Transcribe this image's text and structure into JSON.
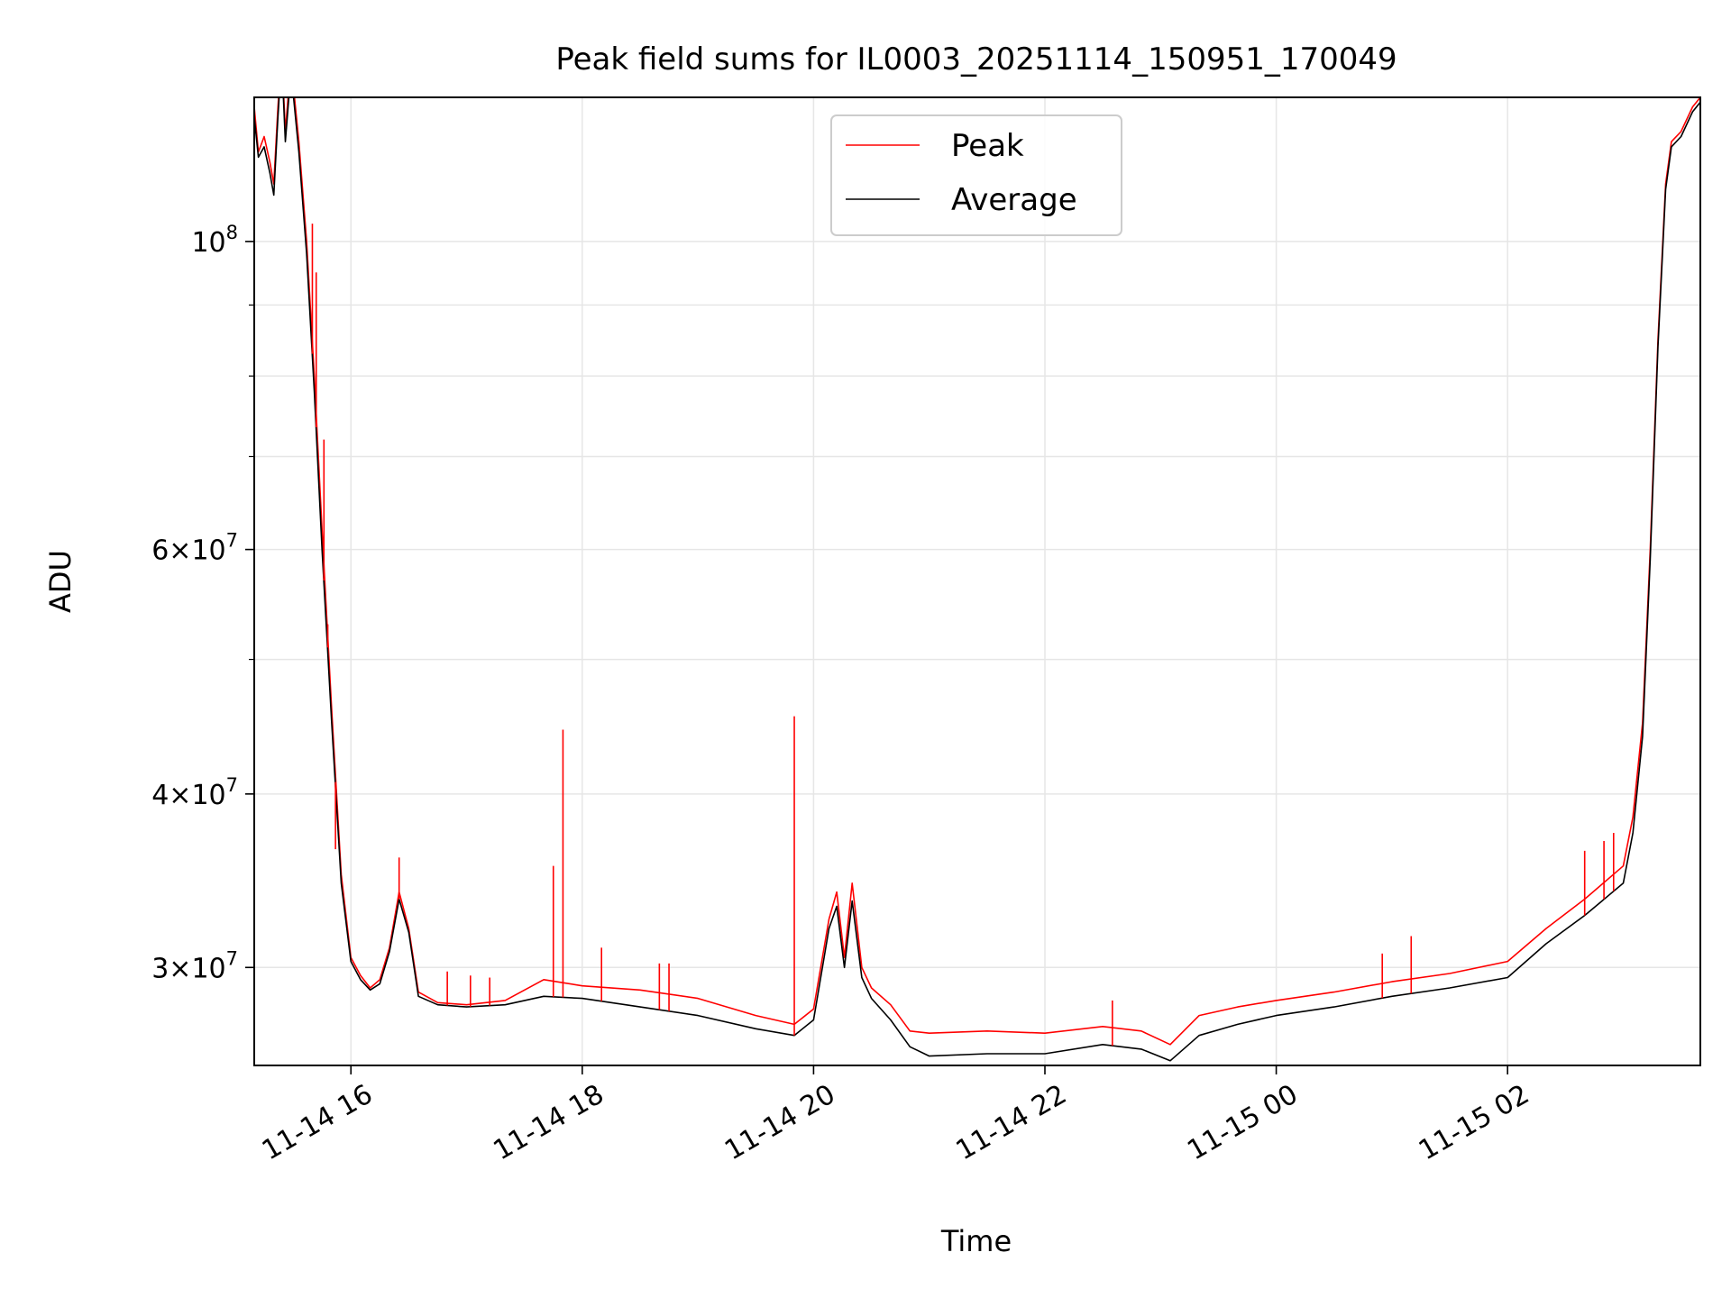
{
  "chart_data": {
    "type": "line",
    "title": "Peak field sums for IL0003_20251114_150951_170049",
    "xlabel": "Time",
    "ylabel": "ADU",
    "yscale": "log",
    "xlim": [
      "2025-11-14T15:09:51",
      "2025-11-15T03:40:00"
    ],
    "ylim": [
      25500000,
      127000000
    ],
    "grid": true,
    "legend_position": "top-center",
    "x_ticks": [
      {
        "x": "2025-11-14T16:00",
        "label": "11-14 16"
      },
      {
        "x": "2025-11-14T18:00",
        "label": "11-14 18"
      },
      {
        "x": "2025-11-14T20:00",
        "label": "11-14 20"
      },
      {
        "x": "2025-11-14T22:00",
        "label": "11-14 22"
      },
      {
        "x": "2025-11-15T00:00",
        "label": "11-15 00"
      },
      {
        "x": "2025-11-15T02:00",
        "label": "11-15 02"
      }
    ],
    "y_ticks_major": [
      {
        "y": 30000000,
        "label_mantissa": "3",
        "label_exp": "7"
      },
      {
        "y": 40000000,
        "label_mantissa": "4",
        "label_exp": "7"
      },
      {
        "y": 60000000,
        "label_mantissa": "6",
        "label_exp": "7"
      },
      {
        "y": 100000000,
        "label_mantissa": "",
        "label_exp": "8"
      }
    ],
    "y_ticks_minor": [
      50000000,
      70000000,
      80000000,
      90000000
    ],
    "series": [
      {
        "name": "Peak",
        "color": "#ff0000",
        "points": [
          [
            "2025-11-14T15:09:51",
            125000000
          ],
          [
            "2025-11-14T15:12",
            116000000
          ],
          [
            "2025-11-14T15:15",
            119000000
          ],
          [
            "2025-11-14T15:18",
            114000000
          ],
          [
            "2025-11-14T15:20",
            110000000
          ],
          [
            "2025-11-14T15:22",
            124000000
          ],
          [
            "2025-11-14T15:24",
            138000000
          ],
          [
            "2025-11-14T15:26",
            120000000
          ],
          [
            "2025-11-14T15:28",
            130000000
          ],
          [
            "2025-11-14T15:30",
            130000000
          ],
          [
            "2025-11-14T15:33",
            118000000
          ],
          [
            "2025-11-14T15:37",
            100000000
          ],
          [
            "2025-11-14T15:41",
            80000000
          ],
          [
            "2025-11-14T15:45",
            62000000
          ],
          [
            "2025-11-14T15:50",
            46000000
          ],
          [
            "2025-11-14T15:55",
            35000000
          ],
          [
            "2025-11-14T16:00",
            30500000
          ],
          [
            "2025-11-14T16:05",
            29600000
          ],
          [
            "2025-11-14T16:10",
            29000000
          ],
          [
            "2025-11-14T16:15",
            29400000
          ],
          [
            "2025-11-14T16:20",
            31000000
          ],
          [
            "2025-11-14T16:25",
            34000000
          ],
          [
            "2025-11-14T16:30",
            32000000
          ],
          [
            "2025-11-14T16:35",
            28800000
          ],
          [
            "2025-11-14T16:45",
            28300000
          ],
          [
            "2025-11-14T17:00",
            28200000
          ],
          [
            "2025-11-14T17:20",
            28400000
          ],
          [
            "2025-11-14T17:40",
            29400000
          ],
          [
            "2025-11-14T18:00",
            29100000
          ],
          [
            "2025-11-14T18:30",
            28900000
          ],
          [
            "2025-11-14T19:00",
            28500000
          ],
          [
            "2025-11-14T19:30",
            27700000
          ],
          [
            "2025-11-14T19:50",
            27300000
          ],
          [
            "2025-11-14T20:00",
            28000000
          ],
          [
            "2025-11-14T20:08",
            32500000
          ],
          [
            "2025-11-14T20:12",
            34000000
          ],
          [
            "2025-11-14T20:16",
            30500000
          ],
          [
            "2025-11-14T20:20",
            34500000
          ],
          [
            "2025-11-14T20:25",
            30000000
          ],
          [
            "2025-11-14T20:30",
            29000000
          ],
          [
            "2025-11-14T20:40",
            28200000
          ],
          [
            "2025-11-14T20:50",
            27000000
          ],
          [
            "2025-11-14T21:00",
            26900000
          ],
          [
            "2025-11-14T21:30",
            27000000
          ],
          [
            "2025-11-14T22:00",
            26900000
          ],
          [
            "2025-11-14T22:30",
            27200000
          ],
          [
            "2025-11-14T22:50",
            27000000
          ],
          [
            "2025-11-14T23:05",
            26400000
          ],
          [
            "2025-11-14T23:20",
            27700000
          ],
          [
            "2025-11-14T23:40",
            28100000
          ],
          [
            "2025-11-15T00:00",
            28400000
          ],
          [
            "2025-11-15T00:30",
            28800000
          ],
          [
            "2025-11-15T01:00",
            29300000
          ],
          [
            "2025-11-15T01:30",
            29700000
          ],
          [
            "2025-11-15T02:00",
            30300000
          ],
          [
            "2025-11-15T02:20",
            32000000
          ],
          [
            "2025-11-15T02:40",
            33600000
          ],
          [
            "2025-11-15T03:00",
            35500000
          ],
          [
            "2025-11-15T03:05",
            38500000
          ],
          [
            "2025-11-15T03:10",
            45000000
          ],
          [
            "2025-11-15T03:14",
            60000000
          ],
          [
            "2025-11-15T03:18",
            85000000
          ],
          [
            "2025-11-15T03:22",
            110000000
          ],
          [
            "2025-11-15T03:25",
            118000000
          ],
          [
            "2025-11-15T03:30",
            120000000
          ],
          [
            "2025-11-15T03:36",
            125000000
          ],
          [
            "2025-11-15T03:40",
            127000000
          ]
        ],
        "spikes": [
          [
            "2025-11-14T15:40",
            103000000
          ],
          [
            "2025-11-14T15:42",
            95000000
          ],
          [
            "2025-11-14T15:46",
            72000000
          ],
          [
            "2025-11-14T15:48",
            53000000
          ],
          [
            "2025-11-14T15:52",
            36500000
          ],
          [
            "2025-11-14T16:25",
            36000000
          ],
          [
            "2025-11-14T16:50",
            29800000
          ],
          [
            "2025-11-14T17:02",
            29600000
          ],
          [
            "2025-11-14T17:12",
            29500000
          ],
          [
            "2025-11-14T17:45",
            35500000
          ],
          [
            "2025-11-14T17:50",
            44500000
          ],
          [
            "2025-11-14T18:10",
            31000000
          ],
          [
            "2025-11-14T18:40",
            30200000
          ],
          [
            "2025-11-14T18:45",
            30200000
          ],
          [
            "2025-11-14T19:50",
            45500000
          ],
          [
            "2025-11-14T22:35",
            28400000
          ],
          [
            "2025-11-15T00:55",
            30700000
          ],
          [
            "2025-11-15T01:10",
            31600000
          ],
          [
            "2025-11-15T02:40",
            36400000
          ],
          [
            "2025-11-15T02:50",
            37000000
          ],
          [
            "2025-11-15T02:55",
            37500000
          ]
        ]
      },
      {
        "name": "Average",
        "color": "#000000",
        "points": [
          [
            "2025-11-14T15:09:51",
            123000000
          ],
          [
            "2025-11-14T15:12",
            115000000
          ],
          [
            "2025-11-14T15:15",
            117000000
          ],
          [
            "2025-11-14T15:18",
            112000000
          ],
          [
            "2025-11-14T15:20",
            108000000
          ],
          [
            "2025-11-14T15:22",
            122000000
          ],
          [
            "2025-11-14T15:24",
            136000000
          ],
          [
            "2025-11-14T15:26",
            118000000
          ],
          [
            "2025-11-14T15:28",
            128000000
          ],
          [
            "2025-11-14T15:30",
            128000000
          ],
          [
            "2025-11-14T15:33",
            116000000
          ],
          [
            "2025-11-14T15:37",
            98000000
          ],
          [
            "2025-11-14T15:41",
            78000000
          ],
          [
            "2025-11-14T15:45",
            60000000
          ],
          [
            "2025-11-14T15:50",
            45000000
          ],
          [
            "2025-11-14T15:55",
            34500000
          ],
          [
            "2025-11-14T16:00",
            30300000
          ],
          [
            "2025-11-14T16:05",
            29400000
          ],
          [
            "2025-11-14T16:10",
            28900000
          ],
          [
            "2025-11-14T16:15",
            29200000
          ],
          [
            "2025-11-14T16:20",
            30800000
          ],
          [
            "2025-11-14T16:25",
            33600000
          ],
          [
            "2025-11-14T16:30",
            31800000
          ],
          [
            "2025-11-14T16:35",
            28600000
          ],
          [
            "2025-11-14T16:45",
            28200000
          ],
          [
            "2025-11-14T17:00",
            28100000
          ],
          [
            "2025-11-14T17:20",
            28200000
          ],
          [
            "2025-11-14T17:40",
            28600000
          ],
          [
            "2025-11-14T18:00",
            28500000
          ],
          [
            "2025-11-14T18:30",
            28100000
          ],
          [
            "2025-11-14T19:00",
            27700000
          ],
          [
            "2025-11-14T19:30",
            27100000
          ],
          [
            "2025-11-14T19:50",
            26800000
          ],
          [
            "2025-11-14T20:00",
            27500000
          ],
          [
            "2025-11-14T20:08",
            32000000
          ],
          [
            "2025-11-14T20:12",
            33200000
          ],
          [
            "2025-11-14T20:16",
            30000000
          ],
          [
            "2025-11-14T20:20",
            33500000
          ],
          [
            "2025-11-14T20:25",
            29500000
          ],
          [
            "2025-11-14T20:30",
            28500000
          ],
          [
            "2025-11-14T20:40",
            27500000
          ],
          [
            "2025-11-14T20:50",
            26300000
          ],
          [
            "2025-11-14T21:00",
            25900000
          ],
          [
            "2025-11-14T21:30",
            26000000
          ],
          [
            "2025-11-14T22:00",
            26000000
          ],
          [
            "2025-11-14T22:30",
            26400000
          ],
          [
            "2025-11-14T22:50",
            26200000
          ],
          [
            "2025-11-14T23:05",
            25700000
          ],
          [
            "2025-11-14T23:20",
            26800000
          ],
          [
            "2025-11-14T23:40",
            27300000
          ],
          [
            "2025-11-15T00:00",
            27700000
          ],
          [
            "2025-11-15T00:30",
            28100000
          ],
          [
            "2025-11-15T01:00",
            28600000
          ],
          [
            "2025-11-15T01:30",
            29000000
          ],
          [
            "2025-11-15T02:00",
            29500000
          ],
          [
            "2025-11-15T02:20",
            31200000
          ],
          [
            "2025-11-15T02:40",
            32700000
          ],
          [
            "2025-11-15T03:00",
            34500000
          ],
          [
            "2025-11-15T03:05",
            37500000
          ],
          [
            "2025-11-15T03:10",
            44000000
          ],
          [
            "2025-11-15T03:14",
            59000000
          ],
          [
            "2025-11-15T03:18",
            84000000
          ],
          [
            "2025-11-15T03:22",
            109000000
          ],
          [
            "2025-11-15T03:25",
            117000000
          ],
          [
            "2025-11-15T03:30",
            119000000
          ],
          [
            "2025-11-15T03:36",
            124000000
          ],
          [
            "2025-11-15T03:40",
            126000000
          ]
        ]
      }
    ]
  }
}
